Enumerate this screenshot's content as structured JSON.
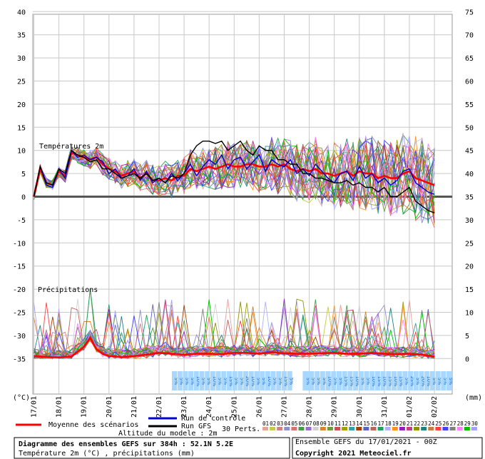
{
  "chart_data": {
    "type": "line",
    "left_axis": {
      "ticks": [
        40,
        35,
        30,
        25,
        20,
        15,
        10,
        5,
        0,
        -5,
        -10,
        -15,
        -20,
        -25,
        -30,
        -35
      ],
      "unit": "(°C)"
    },
    "right_axis": {
      "ticks": [
        75,
        70,
        65,
        60,
        55,
        50,
        45,
        40,
        35,
        30,
        25,
        20,
        15,
        10,
        5,
        0
      ],
      "unit": "(mm)"
    },
    "x_dates": [
      "17/01",
      "18/01",
      "19/01",
      "20/01",
      "21/01",
      "22/01",
      "23/01",
      "24/01",
      "25/01",
      "26/01",
      "27/01",
      "28/01",
      "29/01",
      "30/01",
      "31/01",
      "01/02",
      "02/02"
    ],
    "temperature_label": "Températures 2m",
    "precipitation_label": "Précipitations",
    "series": [
      {
        "name": "Moyenne des scénarios",
        "color": "#ff0000",
        "kind": "temperature",
        "x": [
          0,
          0.25,
          0.5,
          0.75,
          1,
          1.25,
          1.5,
          1.75,
          2,
          2.25,
          2.5,
          2.75,
          3,
          3.25,
          3.5,
          3.75,
          4,
          4.25,
          4.5,
          4.75,
          5,
          5.25,
          5.5,
          5.75,
          6,
          6.25,
          6.5,
          6.75,
          7,
          7.25,
          7.5,
          7.75,
          8,
          8.25,
          8.5,
          8.75,
          9,
          9.25,
          9.5,
          9.75,
          10,
          10.25,
          10.5,
          10.75,
          11,
          11.25,
          11.5,
          11.75,
          12,
          12.25,
          12.5,
          12.75,
          13,
          13.25,
          13.5,
          13.75,
          14,
          14.25,
          14.5,
          14.75,
          15,
          15.25,
          15.5,
          15.75,
          16
        ],
        "values": [
          0,
          6,
          3,
          2.5,
          5.5,
          4.5,
          9.5,
          9,
          8.5,
          8,
          8.5,
          7,
          6,
          5.5,
          4.5,
          5,
          5.5,
          4,
          5,
          3.5,
          3.5,
          4,
          3.5,
          4.5,
          4.5,
          6,
          5.5,
          6,
          6.5,
          6,
          6.5,
          7,
          6.5,
          6.5,
          7,
          7,
          6.5,
          6.5,
          7,
          6.5,
          7,
          6,
          5.5,
          6,
          5.5,
          6,
          5,
          5,
          4.5,
          5,
          5.5,
          4.5,
          5.5,
          5,
          5,
          4,
          4.5,
          4,
          4,
          5,
          5.5,
          4,
          3.5,
          3,
          2.5
        ]
      },
      {
        "name": "Moyenne des scénarios",
        "color": "#ff0000",
        "kind": "precipitation",
        "x": [
          0,
          0.5,
          1,
          1.5,
          2,
          2.25,
          2.5,
          2.75,
          3,
          3.5,
          4,
          4.5,
          5,
          5.5,
          6,
          6.5,
          7,
          7.5,
          8,
          8.5,
          9,
          9.5,
          10,
          10.5,
          11,
          11.5,
          12,
          12.5,
          13,
          13.5,
          14,
          14.5,
          15,
          15.5,
          16
        ],
        "values": [
          0.5,
          0.3,
          0.2,
          0.4,
          2.5,
          4.5,
          2,
          1,
          0.5,
          0.3,
          0.5,
          0.8,
          1.2,
          1,
          0.8,
          1,
          1,
          0.9,
          1.2,
          1.2,
          1,
          1.3,
          1.1,
          1,
          1,
          1.1,
          1.2,
          1,
          1,
          1.2,
          1,
          0.9,
          1,
          0.8,
          0.4
        ]
      },
      {
        "name": "Run de controle",
        "color": "#0000cc",
        "kind": "temperature",
        "x": [
          0,
          0.25,
          0.5,
          0.75,
          1,
          1.25,
          1.5,
          1.75,
          2,
          2.25,
          2.5,
          2.75,
          3,
          3.25,
          3.5,
          3.75,
          4,
          4.25,
          4.5,
          4.75,
          5,
          5.25,
          5.5,
          5.75,
          6,
          6.25,
          6.5,
          6.75,
          7,
          7.25,
          7.5,
          7.75,
          8,
          8.25,
          8.5,
          8.75,
          9,
          9.25,
          9.5,
          9.75,
          10,
          10.25,
          10.5,
          10.75,
          11,
          11.25,
          11.5,
          11.75,
          12,
          12.25,
          12.5,
          12.75,
          13,
          13.25,
          13.5,
          13.75,
          14,
          14.25,
          14.5,
          14.75,
          15,
          15.25,
          15.5,
          15.75,
          16
        ],
        "values": [
          0,
          6.5,
          2.5,
          2,
          6,
          4,
          10,
          8.5,
          9,
          8,
          8.5,
          7.5,
          5,
          6,
          4,
          4.5,
          6,
          3.5,
          5.5,
          3,
          4,
          3,
          5,
          3.5,
          5,
          7,
          4.5,
          6.5,
          8,
          7,
          9,
          6,
          8,
          8.5,
          6,
          7.5,
          9,
          5.5,
          8,
          7,
          6.5,
          8,
          5,
          6,
          4.5,
          7,
          5.5,
          4,
          3,
          5,
          5.5,
          3.5,
          6.5,
          4,
          5,
          3,
          4,
          2.5,
          3.5,
          5.5,
          6,
          3,
          2,
          1,
          0.5
        ]
      },
      {
        "name": "Run GFS",
        "color": "#000000",
        "kind": "temperature",
        "x": [
          0,
          0.25,
          0.5,
          0.75,
          1,
          1.25,
          1.5,
          1.75,
          2,
          2.25,
          2.5,
          2.75,
          3,
          3.25,
          3.5,
          3.75,
          4,
          4.25,
          4.5,
          4.75,
          5,
          5.25,
          5.5,
          5.75,
          6,
          6.25,
          6.5,
          6.75,
          7,
          7.25,
          7.5,
          7.75,
          8,
          8.25,
          8.5,
          8.75,
          9,
          9.25,
          9.5,
          9.75,
          10,
          10.25,
          10.5,
          10.75,
          11,
          11.25,
          11.5,
          11.75,
          12,
          12.25,
          12.5,
          12.75,
          13,
          13.25,
          13.5,
          13.75,
          14,
          14.25,
          14.5,
          14.75,
          15,
          15.25,
          15.5,
          15.75,
          16
        ],
        "values": [
          0,
          6.5,
          3,
          2.5,
          6,
          5,
          10,
          9,
          8.5,
          7.5,
          8,
          6,
          6,
          5,
          4,
          4.5,
          5,
          4,
          5,
          3.5,
          4,
          3,
          4.5,
          4,
          5,
          9,
          11,
          12,
          12,
          11.5,
          12,
          10,
          11,
          12,
          10,
          9,
          11,
          10,
          10,
          8,
          8,
          7,
          7,
          5,
          5,
          4,
          4,
          3.5,
          3,
          3,
          3.5,
          2.5,
          3,
          2,
          2,
          1,
          2,
          0,
          0,
          1,
          2,
          -1,
          -2,
          -3,
          -3.5
        ]
      }
    ],
    "snow_markers": {
      "labels": [
        "5%",
        "5%",
        "5%",
        "5%",
        "10%",
        "5%",
        "5%",
        "10%",
        "5%",
        "5%",
        "15%",
        "5%",
        "5%",
        "20%",
        "10%",
        "5%",
        "5%",
        "10%",
        "5%",
        "5%",
        "15%",
        "5%",
        "5%",
        "5%",
        "5%",
        "5%",
        "5%",
        "5%",
        "10%",
        "5%",
        "5%",
        "15%",
        "15%",
        "10%",
        "5%",
        "5%",
        "10%",
        "15%",
        "10%",
        "15%",
        "10%",
        "15%",
        "5%",
        "25%",
        "5%",
        "20%",
        "10%",
        "5%",
        "5%",
        "5%",
        "5%"
      ]
    },
    "legend_items": [
      "Moyenne des scénarios",
      "Run de contrôle",
      "Run GFS"
    ],
    "perts_label": "30 Perts.",
    "perts_numbers": [
      "01",
      "02",
      "03",
      "04",
      "05",
      "06",
      "07",
      "08",
      "09",
      "10",
      "11",
      "12",
      "13",
      "14",
      "15",
      "16",
      "17",
      "18",
      "19",
      "20",
      "21",
      "22",
      "23",
      "24",
      "25",
      "26",
      "27",
      "28",
      "29",
      "30"
    ],
    "perts_colors": [
      "#e8a0a0",
      "#c9c940",
      "#d28080",
      "#9090d0",
      "#e07070",
      "#40a040",
      "#9e6ad0",
      "#d0d0d0",
      "#e08030",
      "#6c9c3c",
      "#d05050",
      "#a0a000",
      "#30a0a0",
      "#a04000",
      "#6060c0",
      "#c06060",
      "#20a060",
      "#b0b0ff",
      "#ff9020",
      "#9020c0",
      "#c04080",
      "#909000",
      "#208080",
      "#c08040",
      "#ff4040",
      "#4040ff",
      "#808080",
      "#ff80ff",
      "#00c000",
      "#a0a0ff"
    ]
  },
  "footer": {
    "title": "Diagramme des ensembles GEFS sur 384h : 52.1N 5.2E",
    "subtitle": "Température 2m (°C) , précipitations (mm)",
    "altitude": "Altitude du modele : 2m",
    "ensemble": "Ensemble GEFS du 17/01/2021 - 00Z",
    "copyright": "Copyright 2021 Meteociel.fr"
  },
  "colors": {
    "mean": "#ff0000",
    "control": "#0000cc",
    "gfs": "#000000",
    "grid": "#c8c8c8",
    "zero_line": "#555555"
  }
}
